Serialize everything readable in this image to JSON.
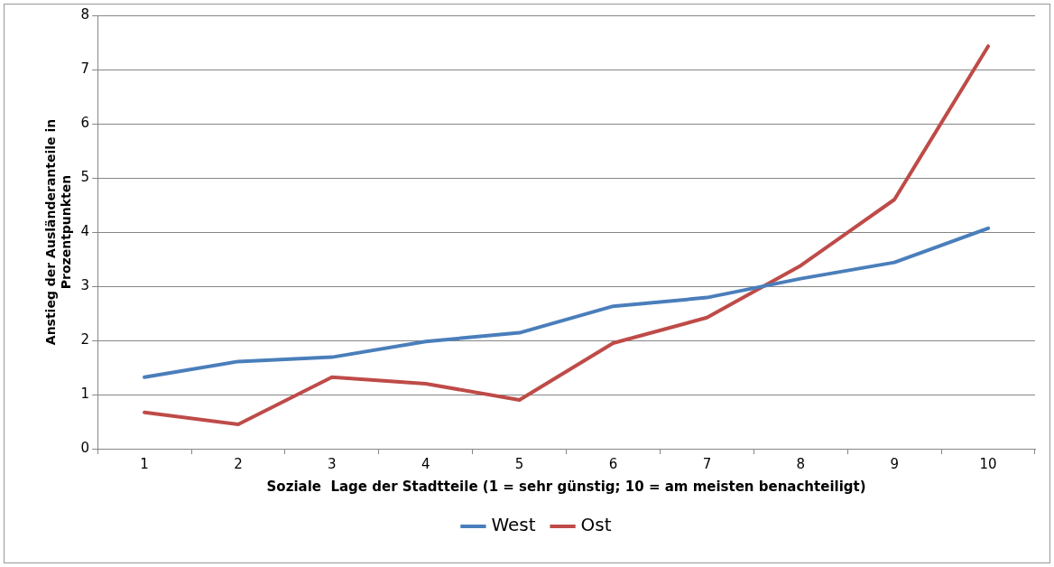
{
  "chart_data": {
    "type": "line",
    "xlabel": "Soziale  Lage der Stadtteile (1 = sehr günstig; 10 = am meisten benachteiligt)",
    "ylabel": "Anstieg der Ausländeranteile in Prozentpunkten",
    "categories": [
      "1",
      "2",
      "3",
      "4",
      "5",
      "6",
      "7",
      "8",
      "9",
      "10"
    ],
    "series": [
      {
        "name": "West",
        "color": "#4a7ebb",
        "values": [
          1.32,
          1.61,
          1.69,
          1.98,
          2.14,
          2.63,
          2.79,
          3.14,
          3.44,
          4.07
        ]
      },
      {
        "name": "Ost",
        "color": "#be4b48",
        "values": [
          0.67,
          0.45,
          1.32,
          1.2,
          0.9,
          1.95,
          2.42,
          3.38,
          4.6,
          7.43
        ]
      }
    ],
    "ylim": [
      0,
      8
    ],
    "yticks": [
      0,
      1,
      2,
      3,
      4,
      5,
      6,
      7,
      8
    ],
    "grid": "y",
    "legend": "bottom",
    "marker": "none",
    "line_style": "solid"
  }
}
